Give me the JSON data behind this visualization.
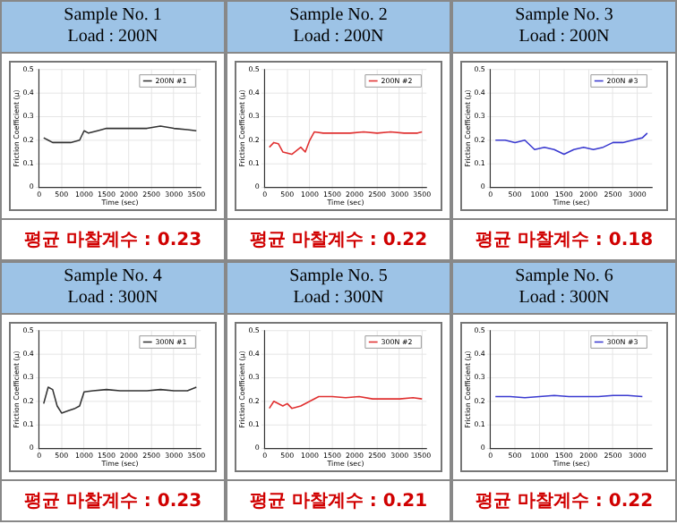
{
  "chart_data": [
    {
      "type": "line",
      "title": "Sample No. 1",
      "subtitle": "Load : 200N",
      "xlabel": "Time (sec)",
      "ylabel": "Friction Coefficient (μ)",
      "annotations": [
        "평균 마찰계수 : 0.23"
      ],
      "legend": "top right",
      "grid": true,
      "marker": "none",
      "line_style": "solid",
      "xlim": [
        0,
        3600
      ],
      "xticks": [
        0,
        500,
        1000,
        1500,
        2000,
        2500,
        3000,
        3500
      ],
      "ylim": [
        0,
        0.5
      ],
      "yticks": [
        0,
        0.1,
        0.2,
        0.3,
        0.4,
        0.5
      ],
      "x": [
        100,
        200,
        300,
        500,
        700,
        900,
        1000,
        1100,
        1300,
        1500,
        1800,
        2100,
        2400,
        2700,
        3000,
        3300,
        3500
      ],
      "series": [
        {
          "name": "200N #1",
          "color": "#333333",
          "values": [
            0.21,
            0.2,
            0.19,
            0.19,
            0.19,
            0.2,
            0.24,
            0.23,
            0.24,
            0.25,
            0.25,
            0.25,
            0.25,
            0.26,
            0.25,
            0.245,
            0.24
          ]
        }
      ]
    },
    {
      "type": "line",
      "title": "Sample No. 2",
      "subtitle": "Load : 200N",
      "xlabel": "Time (sec)",
      "ylabel": "Friction Coefficient (μ)",
      "annotations": [
        "평균 마찰계수 : 0.22"
      ],
      "legend": "top right",
      "grid": true,
      "marker": "none",
      "line_style": "solid",
      "xlim": [
        0,
        3600
      ],
      "xticks": [
        0,
        500,
        1000,
        1500,
        2000,
        2500,
        3000,
        3500
      ],
      "ylim": [
        0,
        0.5
      ],
      "yticks": [
        0,
        0.1,
        0.2,
        0.3,
        0.4,
        0.5
      ],
      "x": [
        100,
        200,
        300,
        400,
        600,
        800,
        900,
        1000,
        1100,
        1300,
        1600,
        1900,
        2200,
        2500,
        2800,
        3100,
        3400,
        3500
      ],
      "series": [
        {
          "name": "200N #2",
          "color": "#e03030",
          "values": [
            0.17,
            0.19,
            0.185,
            0.15,
            0.14,
            0.17,
            0.15,
            0.2,
            0.235,
            0.23,
            0.23,
            0.23,
            0.235,
            0.23,
            0.235,
            0.23,
            0.23,
            0.235
          ]
        }
      ]
    },
    {
      "type": "line",
      "title": "Sample No. 3",
      "subtitle": "Load : 200N",
      "xlabel": "Time (sec)",
      "ylabel": "Friction Coefficient (μ)",
      "annotations": [
        "평균 마찰계수 : 0.18"
      ],
      "legend": "top right",
      "grid": true,
      "marker": "none",
      "line_style": "solid",
      "xlim": [
        0,
        3300
      ],
      "xticks": [
        0,
        500,
        1000,
        1500,
        2000,
        2500,
        3000
      ],
      "ylim": [
        0,
        0.5
      ],
      "yticks": [
        0,
        0.1,
        0.2,
        0.3,
        0.4,
        0.5
      ],
      "x": [
        100,
        300,
        500,
        700,
        900,
        1100,
        1300,
        1500,
        1700,
        1900,
        2100,
        2300,
        2500,
        2700,
        2900,
        3100,
        3200
      ],
      "series": [
        {
          "name": "200N #3",
          "color": "#3a3ad0",
          "values": [
            0.2,
            0.2,
            0.19,
            0.2,
            0.16,
            0.17,
            0.16,
            0.14,
            0.16,
            0.17,
            0.16,
            0.17,
            0.19,
            0.19,
            0.2,
            0.21,
            0.23
          ]
        }
      ]
    },
    {
      "type": "line",
      "title": "Sample No. 4",
      "subtitle": "Load : 300N",
      "xlabel": "Time (sec)",
      "ylabel": "Friction Coefficient (μ)",
      "annotations": [
        "평균 마찰계수 : 0.23"
      ],
      "legend": "top right",
      "grid": true,
      "marker": "none",
      "line_style": "solid",
      "xlim": [
        0,
        3600
      ],
      "xticks": [
        0,
        500,
        1000,
        1500,
        2000,
        2500,
        3000,
        3500
      ],
      "ylim": [
        0,
        0.5
      ],
      "yticks": [
        0,
        0.1,
        0.2,
        0.3,
        0.4,
        0.5
      ],
      "x": [
        100,
        200,
        300,
        400,
        500,
        650,
        800,
        900,
        1000,
        1200,
        1500,
        1800,
        2100,
        2400,
        2700,
        3000,
        3300,
        3500
      ],
      "series": [
        {
          "name": "300N #1",
          "color": "#333333",
          "values": [
            0.19,
            0.26,
            0.25,
            0.18,
            0.15,
            0.16,
            0.17,
            0.18,
            0.24,
            0.245,
            0.25,
            0.245,
            0.245,
            0.245,
            0.25,
            0.245,
            0.245,
            0.26
          ]
        }
      ]
    },
    {
      "type": "line",
      "title": "Sample No. 5",
      "subtitle": "Load : 300N",
      "xlabel": "Time (sec)",
      "ylabel": "Friction Coefficient (μ)",
      "annotations": [
        "평균 마찰계수 : 0.21"
      ],
      "legend": "top right",
      "grid": true,
      "marker": "none",
      "line_style": "solid",
      "xlim": [
        0,
        3600
      ],
      "xticks": [
        0,
        500,
        1000,
        1500,
        2000,
        2500,
        3000,
        3500
      ],
      "ylim": [
        0,
        0.5
      ],
      "yticks": [
        0,
        0.1,
        0.2,
        0.3,
        0.4,
        0.5
      ],
      "x": [
        100,
        200,
        400,
        500,
        600,
        800,
        1000,
        1200,
        1500,
        1800,
        2100,
        2400,
        2700,
        3000,
        3300,
        3500
      ],
      "series": [
        {
          "name": "300N #2",
          "color": "#e03030",
          "values": [
            0.17,
            0.2,
            0.18,
            0.19,
            0.17,
            0.18,
            0.2,
            0.22,
            0.22,
            0.215,
            0.22,
            0.21,
            0.21,
            0.21,
            0.215,
            0.21
          ]
        }
      ]
    },
    {
      "type": "line",
      "title": "Sample No. 6",
      "subtitle": "Load : 300N",
      "xlabel": "Time (sec)",
      "ylabel": "Friction Coefficient (μ)",
      "annotations": [
        "평균 마찰계수 : 0.22"
      ],
      "legend": "top right",
      "grid": true,
      "marker": "none",
      "line_style": "solid",
      "xlim": [
        0,
        3300
      ],
      "xticks": [
        0,
        500,
        1000,
        1500,
        2000,
        2500,
        3000
      ],
      "ylim": [
        0,
        0.5
      ],
      "yticks": [
        0,
        0.1,
        0.2,
        0.3,
        0.4,
        0.5
      ],
      "x": [
        100,
        400,
        700,
        1000,
        1300,
        1600,
        1900,
        2200,
        2500,
        2800,
        3100
      ],
      "series": [
        {
          "name": "300N #3",
          "color": "#3a3ad0",
          "values": [
            0.22,
            0.22,
            0.215,
            0.22,
            0.225,
            0.22,
            0.22,
            0.22,
            0.225,
            0.225,
            0.22
          ]
        }
      ]
    }
  ]
}
